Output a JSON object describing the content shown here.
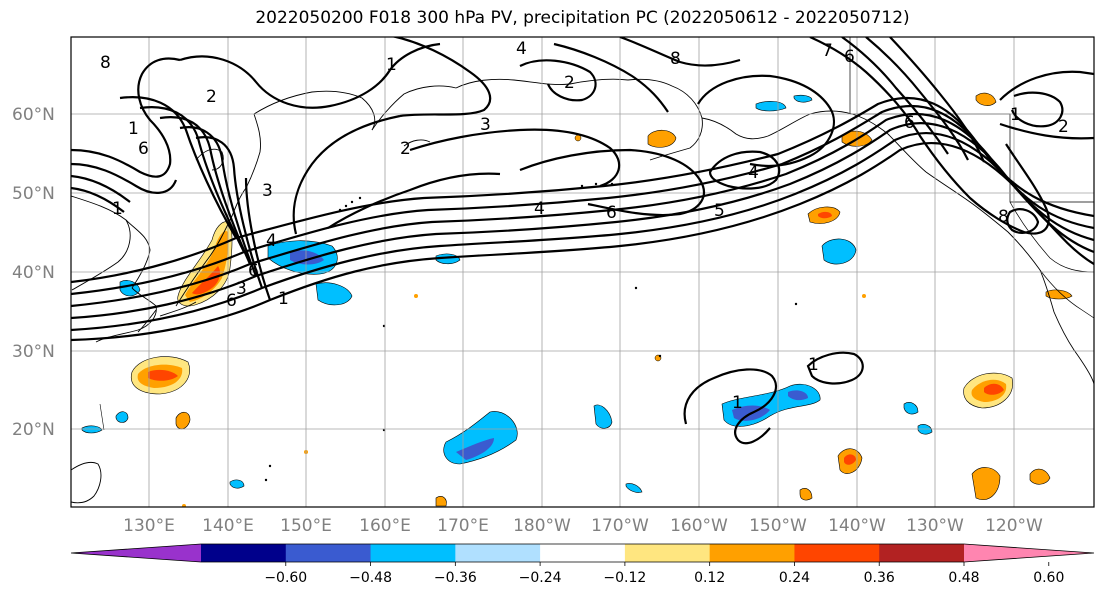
{
  "title": "2022050200 F018 300 hPa PV, precipitation PC (2022050612 - 2022050712)",
  "latitude_labels": [
    "60°N",
    "50°N",
    "40°N",
    "30°N",
    "20°N"
  ],
  "longitude_labels": [
    "130°E",
    "140°E",
    "150°E",
    "160°E",
    "170°E",
    "180°W",
    "170°W",
    "160°W",
    "150°W",
    "140°W",
    "130°W",
    "120°W"
  ],
  "colorbar": {
    "colors": [
      "#9932cc",
      "#00008b",
      "#3a5bd0",
      "#00bfff",
      "#b0e0ff",
      "#ffffff",
      "#ffe680",
      "#ffa000",
      "#ff4500",
      "#b22222",
      "#ff85b0"
    ],
    "tick_labels": [
      "−0.60",
      "−0.48",
      "−0.36",
      "−0.24",
      "−0.12",
      "0.12",
      "0.24",
      "0.36",
      "0.48",
      "0.60"
    ]
  },
  "pv_contour_labels": [
    "8",
    "2",
    "1",
    "1",
    "6",
    "3",
    "6",
    "3",
    "6",
    "4",
    "1",
    "2",
    "4",
    "3",
    "4",
    "6",
    "5",
    "1",
    "8",
    "7",
    "6",
    "2",
    "6",
    "8",
    "1",
    "2",
    "4",
    "1",
    "1"
  ]
}
